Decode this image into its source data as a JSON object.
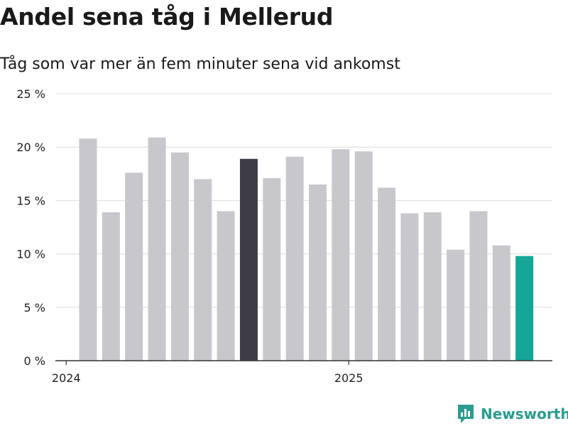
{
  "chart_data": {
    "type": "bar",
    "title": "Andel sena tåg i Mellerud",
    "subtitle": "Tåg som var mer än fem minuter sena vid ankomst",
    "xlabel": "",
    "ylabel": "",
    "ylim": [
      0,
      25
    ],
    "yticks": [
      0,
      5,
      10,
      15,
      20,
      25
    ],
    "ytick_labels": [
      "0 %",
      "5 %",
      "10 %",
      "15 %",
      "20 %",
      "25 %"
    ],
    "x_tick_labels": [
      {
        "label": "2024",
        "at_index": -0.95
      },
      {
        "label": "2025",
        "at_index": 11.35
      }
    ],
    "values": [
      20.8,
      13.9,
      17.6,
      20.9,
      19.5,
      17.0,
      14.0,
      18.9,
      17.1,
      19.1,
      16.5,
      19.8,
      19.6,
      16.2,
      13.8,
      13.9,
      10.4,
      14.0,
      10.8,
      9.8
    ],
    "highlight": {
      "dark_index": 7,
      "accent_index": 19
    },
    "grid": true
  },
  "colors": {
    "bar": "#c8c7cc",
    "bar_dark": "#3e3d47",
    "bar_accent": "#14a697",
    "grid": "#dcdcdc",
    "axis": "#333333",
    "brand": "#2a9d8f"
  },
  "brand": {
    "name": "Newsworthy",
    "icon": "newsworthy-logo-icon"
  }
}
